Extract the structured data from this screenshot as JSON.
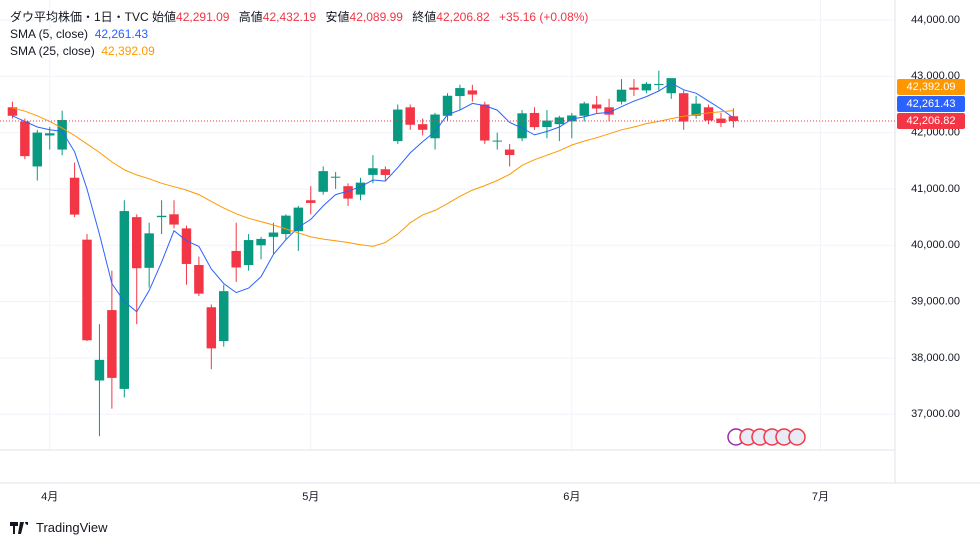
{
  "chart_data": {
    "type": "candlestick",
    "title": "ダウ平均株価・1日・TVC",
    "ohlc_header": {
      "open_label": "始値",
      "open": "42,291.09",
      "high_label": "高値",
      "high": "42,432.19",
      "low_label": "安値",
      "low": "42,089.99",
      "close_label": "終値",
      "close": "42,206.82",
      "change": "+35.16 (+0.08%)"
    },
    "up_color": "#089981",
    "down_color": "#f23645",
    "xlim": [
      -1,
      71
    ],
    "xticks": [
      {
        "value": 3,
        "label": "4月"
      },
      {
        "value": 24,
        "label": "5月"
      },
      {
        "value": 45,
        "label": "6月"
      },
      {
        "value": 65,
        "label": "7月"
      }
    ],
    "ylim": [
      35780,
      44355
    ],
    "yticks": [
      {
        "value": 37000,
        "label": "37,000.00"
      },
      {
        "value": 38000,
        "label": "38,000.00"
      },
      {
        "value": 39000,
        "label": "39,000.00"
      },
      {
        "value": 40000,
        "label": "40,000.00"
      },
      {
        "value": 41000,
        "label": "41,000.00"
      },
      {
        "value": 42000,
        "label": "42,000.00"
      },
      {
        "value": 43000,
        "label": "43,000.00"
      },
      {
        "value": 44000,
        "label": "44,000.00"
      }
    ],
    "grid": true,
    "open": [
      42450,
      42200,
      41400,
      41950,
      41700,
      41200,
      40100,
      37600,
      38850,
      37450,
      40500,
      39600,
      40500,
      40550,
      40300,
      39650,
      38900,
      38300,
      39900,
      39650,
      40000,
      40150,
      40200,
      40250,
      40800,
      40950,
      41200,
      41050,
      40900,
      41250,
      41350,
      41850,
      42450,
      42150,
      41900,
      42300,
      42650,
      42750,
      42500,
      41850,
      41700,
      41900,
      42350,
      42100,
      42150,
      42200,
      42300,
      42500,
      42450,
      42550,
      42800,
      42750,
      42850,
      42700,
      42700,
      42300,
      42450,
      42250,
      42291.09
    ],
    "high": [
      42550,
      42250,
      42050,
      42100,
      42390,
      41470,
      40200,
      38600,
      39550,
      40800,
      40550,
      40400,
      40800,
      40800,
      40350,
      39800,
      38950,
      39300,
      40400,
      40200,
      40150,
      40400,
      40550,
      40700,
      41050,
      41400,
      41300,
      41100,
      41200,
      41600,
      41400,
      42500,
      42500,
      42250,
      42350,
      42700,
      42850,
      42850,
      42550,
      42000,
      41800,
      42400,
      42450,
      42400,
      42300,
      42350,
      42550,
      42650,
      42600,
      42950,
      42950,
      42900,
      43100,
      42950,
      42750,
      42650,
      42500,
      42350,
      42432.19
    ],
    "low": [
      42250,
      41530,
      41150,
      41700,
      41600,
      40500,
      38300,
      36611,
      37100,
      37300,
      38600,
      39250,
      40200,
      40300,
      39300,
      39100,
      37800,
      38200,
      39350,
      39550,
      39750,
      39850,
      40100,
      39900,
      40550,
      40900,
      41000,
      40700,
      40800,
      41100,
      41150,
      41800,
      42050,
      41950,
      41700,
      42200,
      42400,
      42550,
      41800,
      41700,
      41400,
      41850,
      42050,
      41900,
      41850,
      41900,
      42200,
      42350,
      42200,
      42500,
      42650,
      42700,
      42750,
      42600,
      42050,
      42250,
      42150,
      42100,
      42089.99
    ],
    "close": [
      42300,
      41583,
      42001,
      41989,
      42225,
      40545,
      38314,
      37966,
      37646,
      40608,
      39593,
      40212,
      40524,
      40368,
      39669,
      39142,
      38170,
      39186,
      39606,
      40093,
      40113,
      40227,
      40527,
      40669,
      40752,
      41317,
      41218,
      40829,
      41113,
      41368,
      41249,
      42410,
      42140,
      42051,
      42322,
      42655,
      42792,
      42677,
      41860,
      41859,
      41603,
      42343,
      42098,
      42215,
      42270,
      42305,
      42519,
      42428,
      42320,
      42763,
      42762,
      42867,
      42865,
      42968,
      42197,
      42515,
      42216,
      42172,
      42206.82
    ],
    "series": [
      {
        "name": "SMA (5, close)",
        "color": "#2962ff",
        "last_label": "42,261.43",
        "values": [
          42300,
          42200,
          42100,
          42050,
          42020,
          41660,
          41000,
          40200,
          39320,
          39000,
          38820,
          39200,
          39700,
          40260,
          40080,
          39980,
          39580,
          39320,
          39160,
          39240,
          39440,
          39840,
          40100,
          40320,
          40460,
          40700,
          40900,
          40960,
          41040,
          41160,
          41140,
          41380,
          41640,
          41840,
          42020,
          42320,
          42400,
          42520,
          42480,
          42400,
          42180,
          42080,
          41960,
          42020,
          42100,
          42240,
          42280,
          42340,
          42360,
          42460,
          42560,
          42640,
          42740,
          42880,
          42760,
          42700,
          42560,
          42420,
          42261.43
        ]
      },
      {
        "name": "SMA (25, close)",
        "color": "#ff9800",
        "last_label": "42,392.09",
        "values": [
          42440,
          42380,
          42300,
          42200,
          42080,
          41950,
          41800,
          41650,
          41480,
          41340,
          41250,
          41180,
          41100,
          41040,
          40980,
          40900,
          40780,
          40660,
          40560,
          40480,
          40420,
          40360,
          40290,
          40220,
          40150,
          40110,
          40080,
          40050,
          40010,
          39980,
          40050,
          40200,
          40400,
          40540,
          40620,
          40740,
          40870,
          40980,
          41060,
          41150,
          41260,
          41420,
          41520,
          41600,
          41680,
          41780,
          41850,
          41910,
          41980,
          42050,
          42100,
          42160,
          42200,
          42250,
          42290,
          42320,
          42350,
          42370,
          42392.09
        ]
      }
    ]
  },
  "brand": "TradingView"
}
